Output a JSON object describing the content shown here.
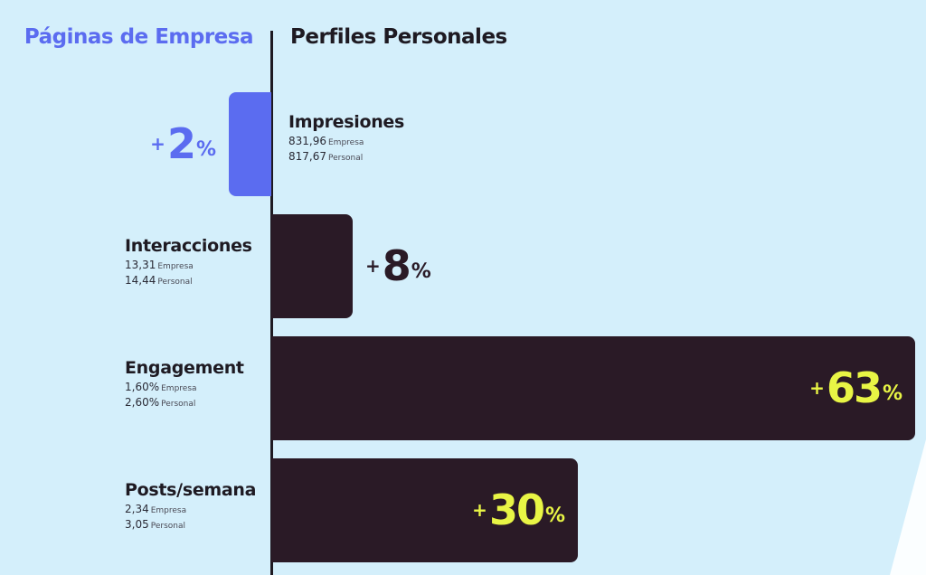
{
  "colors": {
    "empresa": "#5b6cf0",
    "personal": "#2a1a26",
    "highlight": "#e8f545",
    "background": "#d4effb"
  },
  "chart_data": {
    "type": "bar",
    "orientation": "diverging-horizontal",
    "left_header": "Páginas de Empresa",
    "right_header": "Perfiles Personales",
    "rows": [
      {
        "metric": "Impresiones",
        "empresa": "831,96",
        "personal": "817,67",
        "empresa_label": "Empresa",
        "personal_label": "Personal",
        "winner": "empresa",
        "diff": 2
      },
      {
        "metric": "Interacciones",
        "empresa": "13,31",
        "personal": "14,44",
        "empresa_label": "Empresa",
        "personal_label": "Personal",
        "winner": "personal",
        "diff": 8
      },
      {
        "metric": "Engagement",
        "empresa": "1,60%",
        "personal": "2,60%",
        "empresa_label": "Empresa",
        "personal_label": "Personal",
        "winner": "personal",
        "diff": 63
      },
      {
        "metric": "Posts/semana",
        "empresa": "2,34",
        "personal": "3,05",
        "empresa_label": "Empresa",
        "personal_label": "Personal",
        "winner": "personal",
        "diff": 30
      }
    ],
    "plus": "+",
    "unit": "%"
  }
}
